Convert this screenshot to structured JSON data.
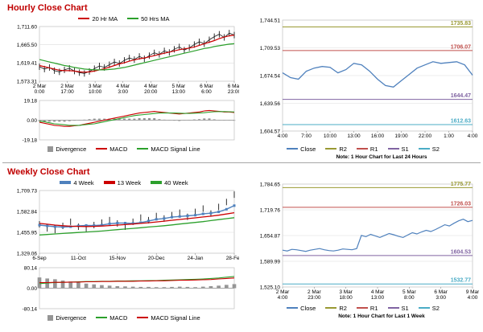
{
  "colors": {
    "section_title": "#C00000",
    "close_line": "#4F81BD",
    "grid": "#DCDCDC"
  },
  "sections": {
    "hourly": {
      "title": "Hourly Close Chart"
    },
    "weekly": {
      "title": "Weekly Close Chart"
    }
  },
  "chart_data": [
    {
      "id": "hourly-price",
      "type": "line",
      "title": "Hourly Close Chart",
      "ylim": [
        1573.31,
        1711.6
      ],
      "yticks": [
        {
          "v": 1711.6,
          "t": "1,711.60"
        },
        {
          "v": 1665.5,
          "t": "1,665.50"
        },
        {
          "v": 1619.41,
          "t": "1,619.41"
        },
        {
          "v": 1573.31,
          "t": "1,573.31"
        }
      ],
      "xticklabels": [
        [
          "2 Mar",
          "0:00"
        ],
        [
          "2 Mar",
          "17:00"
        ],
        [
          "3 Mar",
          "10:00"
        ],
        [
          "4 Mar",
          "3:00"
        ],
        [
          "4 Mar",
          "20:00"
        ],
        [
          "5 Mar",
          "13:00"
        ],
        [
          "6 Mar",
          "6:00"
        ],
        [
          "6 Mar",
          "23:00"
        ]
      ],
      "legend": [
        {
          "name": "20 Hr MA",
          "color": "#CC0000",
          "swatch": "line"
        },
        {
          "name": "50 Hrs MA",
          "color": "#2CA02C",
          "swatch": "line"
        }
      ],
      "series": [
        {
          "name": "Close",
          "color": "#1A1A1A",
          "width": 0.8,
          "render": "hl",
          "values": [
            1610,
            1604,
            1608,
            1600,
            1597,
            1602,
            1606,
            1599,
            1595,
            1593,
            1598,
            1605,
            1612,
            1608,
            1615,
            1622,
            1618,
            1626,
            1632,
            1628,
            1636,
            1630,
            1638,
            1645,
            1641,
            1650,
            1646,
            1654,
            1660,
            1652,
            1658,
            1666,
            1673,
            1668,
            1678,
            1686,
            1692,
            1684,
            1695,
            1690
          ]
        },
        {
          "name": "20 Hr MA",
          "color": "#CC0000",
          "width": 1.2,
          "values": [
            1613,
            1610,
            1607,
            1604,
            1601,
            1600,
            1600,
            1599,
            1597,
            1596,
            1597,
            1599,
            1602,
            1605,
            1609,
            1613,
            1617,
            1620,
            1624,
            1627,
            1630,
            1632,
            1635,
            1638,
            1641,
            1644,
            1647,
            1650,
            1653,
            1655,
            1657,
            1660,
            1664,
            1668,
            1672,
            1676,
            1681,
            1685,
            1688,
            1690
          ]
        },
        {
          "name": "50 Hrs MA",
          "color": "#2CA02C",
          "width": 1.2,
          "values": [
            1628,
            1625,
            1622,
            1619,
            1616,
            1613,
            1611,
            1608,
            1606,
            1604,
            1603,
            1602,
            1602,
            1602,
            1603,
            1604,
            1606,
            1608,
            1611,
            1614,
            1617,
            1620,
            1623,
            1626,
            1629,
            1632,
            1635,
            1638,
            1641,
            1644,
            1647,
            1650,
            1653,
            1656,
            1658,
            1661,
            1663,
            1665,
            1667,
            1668
          ]
        }
      ]
    },
    {
      "id": "hourly-macd",
      "type": "line+bar",
      "ylim": [
        -19.18,
        19.18
      ],
      "zero_line": true,
      "yticks": [
        {
          "v": 19.18,
          "t": "19.18"
        },
        {
          "v": 0,
          "t": "0.00"
        },
        {
          "v": -19.18,
          "t": "-19.18"
        }
      ],
      "legend": [
        {
          "name": "Divergence",
          "color": "#969696",
          "swatch": "bar"
        },
        {
          "name": "MACD",
          "color": "#CC0000",
          "swatch": "line"
        },
        {
          "name": "MACD Signal Line",
          "color": "#2CA02C",
          "swatch": "line"
        }
      ],
      "bars": {
        "name": "Divergence",
        "color": "#969696",
        "values": [
          -1,
          -1.5,
          -1.5,
          -1.5,
          -1.5,
          -1.5,
          -1,
          -0.5,
          0,
          0.5,
          1,
          1.5,
          1.5,
          1.5,
          1.5,
          1.5,
          1.5,
          1.5,
          1.5,
          1.5,
          2,
          2,
          2,
          2,
          1,
          0.5,
          0,
          -0.5,
          -0.8,
          -0.1,
          0.4,
          0.7,
          1,
          1.7,
          1.7,
          0.8,
          0.1,
          -0.4,
          -0.2,
          -0.5
        ]
      },
      "series": [
        {
          "name": "MACD",
          "color": "#CC0000",
          "width": 1.1,
          "values": [
            -2,
            -3,
            -4,
            -5,
            -5.5,
            -6,
            -6,
            -5.5,
            -5,
            -4,
            -3,
            -2,
            -1,
            0,
            1,
            2,
            3,
            4,
            5,
            6,
            7,
            7.5,
            8,
            8.5,
            8,
            7.5,
            7,
            6.5,
            6,
            6.5,
            7,
            7.5,
            8,
            9,
            9.5,
            9,
            8.5,
            8,
            8,
            7.5
          ]
        },
        {
          "name": "MACD Signal Line",
          "color": "#2CA02C",
          "width": 1.1,
          "values": [
            -1,
            -1.5,
            -2.5,
            -3.5,
            -4,
            -4.5,
            -5,
            -5,
            -5,
            -4.5,
            -4,
            -3.5,
            -2.5,
            -1.5,
            -0.5,
            0.5,
            1.5,
            2.5,
            3.5,
            4.5,
            5,
            5.5,
            6,
            6.5,
            7,
            7,
            7,
            7,
            6.8,
            6.6,
            6.6,
            6.8,
            7,
            7.3,
            7.8,
            8.2,
            8.4,
            8.4,
            8.2,
            8
          ]
        }
      ]
    },
    {
      "id": "hourly-sr",
      "type": "line",
      "note": "Note: 1 Hour Chart for Last 24 Hours",
      "ylim": [
        1604.57,
        1744.51
      ],
      "yticks": [
        {
          "v": 1744.51,
          "t": "1,744.51"
        },
        {
          "v": 1709.53,
          "t": "1,709.53"
        },
        {
          "v": 1674.54,
          "t": "1,674.54"
        },
        {
          "v": 1639.56,
          "t": "1,639.56"
        },
        {
          "v": 1604.57,
          "t": "1,604.57"
        }
      ],
      "xticklabels": [
        "4:00",
        "7:00",
        "10:00",
        "13:00",
        "16:00",
        "19:00",
        "22:00",
        "1:00",
        "4:00"
      ],
      "levels": [
        {
          "name": "R2",
          "value": 1735.83,
          "label": "1735.83",
          "color": "#999933"
        },
        {
          "name": "R1",
          "value": 1706.07,
          "label": "1706.07",
          "color": "#C0504D"
        },
        {
          "name": "S1",
          "value": 1644.47,
          "label": "1644.47",
          "color": "#8064A2"
        },
        {
          "name": "S2",
          "value": 1612.63,
          "label": "1612.63",
          "color": "#4BACC6"
        }
      ],
      "legend": [
        {
          "name": "Close",
          "color": "#4F81BD",
          "swatch": "line"
        },
        {
          "name": "R2",
          "color": "#999933",
          "swatch": "line"
        },
        {
          "name": "R1",
          "color": "#C0504D",
          "swatch": "line"
        },
        {
          "name": "S1",
          "color": "#8064A2",
          "swatch": "line"
        },
        {
          "name": "S2",
          "color": "#4BACC6",
          "swatch": "line"
        }
      ],
      "series": [
        {
          "name": "Close",
          "color": "#4F81BD",
          "width": 1.3,
          "values": [
            1678,
            1672,
            1670,
            1680,
            1684,
            1686,
            1685,
            1678,
            1682,
            1690,
            1688,
            1680,
            1670,
            1662,
            1660,
            1668,
            1676,
            1684,
            1688,
            1692,
            1690,
            1691,
            1692,
            1688,
            1675
          ]
        }
      ]
    },
    {
      "id": "weekly-price",
      "type": "line",
      "title": "Weekly Close Chart",
      "ylim": [
        1329.06,
        1709.73
      ],
      "yticks": [
        {
          "v": 1709.73,
          "t": "1,709.73"
        },
        {
          "v": 1582.84,
          "t": "1,582.84"
        },
        {
          "v": 1455.95,
          "t": "1,455.95"
        },
        {
          "v": 1329.06,
          "t": "1,329.06"
        }
      ],
      "xticklabels": [
        "6-Sep",
        "11-Oct",
        "15-Nov",
        "20-Dec",
        "24-Jan",
        "28-Feb"
      ],
      "legend": [
        {
          "name": "4 Week",
          "color": "#4F81BD",
          "swatch": "thick"
        },
        {
          "name": "13 Week",
          "color": "#CC0000",
          "swatch": "thick"
        },
        {
          "name": "40 Week",
          "color": "#2CA02C",
          "swatch": "thick"
        }
      ],
      "series": [
        {
          "name": "Close",
          "color": "#1A1A1A",
          "render": "hl",
          "noline": true,
          "values": [
            1505,
            1480,
            1470,
            1495,
            1520,
            1490,
            1475,
            1500,
            1515,
            1530,
            1510,
            1490,
            1520,
            1545,
            1530,
            1555,
            1540,
            1560,
            1575,
            1550,
            1580,
            1600,
            1570,
            1610,
            1640,
            1685
          ]
        },
        {
          "name": "4 Week",
          "color": "#4F81BD",
          "width": 1.4,
          "marker": "square",
          "values": [
            1500,
            1495,
            1490,
            1488,
            1490,
            1495,
            1498,
            1497,
            1500,
            1508,
            1512,
            1512,
            1510,
            1515,
            1525,
            1535,
            1540,
            1548,
            1552,
            1556,
            1560,
            1568,
            1572,
            1580,
            1596,
            1618
          ]
        },
        {
          "name": "13 Week",
          "color": "#CC0000",
          "width": 1.3,
          "values": [
            1510,
            1505,
            1500,
            1496,
            1493,
            1492,
            1491,
            1492,
            1494,
            1497,
            1500,
            1503,
            1506,
            1510,
            1514,
            1519,
            1524,
            1529,
            1534,
            1539,
            1544,
            1549,
            1554,
            1560,
            1567,
            1575
          ]
        },
        {
          "name": "40 Week",
          "color": "#2CA02C",
          "width": 1.3,
          "values": [
            1440,
            1443,
            1446,
            1449,
            1452,
            1455,
            1458,
            1461,
            1464,
            1468,
            1472,
            1476,
            1480,
            1484,
            1488,
            1492,
            1496,
            1501,
            1506,
            1511,
            1516,
            1521,
            1527,
            1533,
            1539,
            1545
          ]
        }
      ]
    },
    {
      "id": "weekly-macd",
      "type": "line+bar",
      "ylim": [
        -80.14,
        80.14
      ],
      "zero_line": true,
      "yticks": [
        {
          "v": 80.14,
          "t": "80.14"
        },
        {
          "v": 0,
          "t": "0.00"
        },
        {
          "v": -80.14,
          "t": "-80.14"
        }
      ],
      "legend": [
        {
          "name": "Divergence",
          "color": "#969696",
          "swatch": "bar"
        },
        {
          "name": "MACD",
          "color": "#2CA02C",
          "swatch": "line"
        },
        {
          "name": "MACD Signal Line",
          "color": "#CC0000",
          "swatch": "line"
        }
      ],
      "bars": {
        "name": "Divergence",
        "color": "#969696",
        "values": [
          42,
          38,
          35,
          30,
          26,
          22,
          18,
          15,
          12,
          10,
          8,
          7,
          6,
          5,
          5,
          4,
          4,
          5,
          6,
          5,
          4,
          6,
          8,
          10,
          13,
          16
        ]
      },
      "series": [
        {
          "name": "MACD",
          "color": "#2CA02C",
          "width": 1.1,
          "values": [
            18,
            20,
            22,
            23,
            24,
            25,
            26,
            26,
            27,
            27,
            28,
            28,
            29,
            29,
            30,
            30,
            31,
            32,
            33,
            34,
            35,
            36,
            38,
            40,
            43,
            46
          ]
        },
        {
          "name": "MACD Signal Line",
          "color": "#CC0000",
          "width": 1.1,
          "values": [
            22,
            22,
            23,
            23,
            24,
            24,
            25,
            25,
            26,
            26,
            27,
            27,
            27,
            28,
            28,
            29,
            29,
            30,
            31,
            31,
            32,
            33,
            34,
            36,
            38,
            40
          ]
        }
      ]
    },
    {
      "id": "weekly-sr",
      "type": "line",
      "note": "Note: 1 Hour Chart for Last 1 Week",
      "ylim": [
        1525.1,
        1784.65
      ],
      "yticks": [
        {
          "v": 1784.65,
          "t": "1,784.65"
        },
        {
          "v": 1719.76,
          "t": "1,719.76"
        },
        {
          "v": 1654.87,
          "t": "1,654.87"
        },
        {
          "v": 1589.99,
          "t": "1,589.99"
        },
        {
          "v": 1525.1,
          "t": "1,525.10"
        }
      ],
      "xticklabels": [
        [
          "2 Mar",
          "4:00"
        ],
        [
          "2 Mar",
          "23:00"
        ],
        [
          "3 Mar",
          "18:00"
        ],
        [
          "4 Mar",
          "13:00"
        ],
        [
          "5 Mar",
          "8:00"
        ],
        [
          "6 Mar",
          "3:00"
        ],
        [
          "9 Mar",
          "4:00"
        ]
      ],
      "levels": [
        {
          "name": "R2",
          "value": 1775.77,
          "label": "1775.77",
          "color": "#999933"
        },
        {
          "name": "R1",
          "value": 1726.03,
          "label": "1726.03",
          "color": "#C0504D"
        },
        {
          "name": "S1",
          "value": 1604.53,
          "label": "1604.53",
          "color": "#8064A2"
        },
        {
          "name": "S2",
          "value": 1532.77,
          "label": "1532.77",
          "color": "#4BACC6"
        }
      ],
      "legend": [
        {
          "name": "Close",
          "color": "#4F81BD",
          "swatch": "line"
        },
        {
          "name": "R2",
          "color": "#999933",
          "swatch": "line"
        },
        {
          "name": "R1",
          "color": "#C0504D",
          "swatch": "line"
        },
        {
          "name": "S1",
          "color": "#8064A2",
          "swatch": "line"
        },
        {
          "name": "S2",
          "color": "#4BACC6",
          "swatch": "line"
        }
      ],
      "series": [
        {
          "name": "Close",
          "color": "#4F81BD",
          "width": 1.2,
          "values": [
            1618,
            1616,
            1620,
            1619,
            1617,
            1615,
            1618,
            1620,
            1622,
            1619,
            1617,
            1616,
            1618,
            1621,
            1620,
            1619,
            1622,
            1655,
            1652,
            1658,
            1654,
            1650,
            1655,
            1660,
            1657,
            1653,
            1650,
            1656,
            1662,
            1659,
            1664,
            1668,
            1665,
            1670,
            1676,
            1682,
            1679,
            1686,
            1692,
            1696,
            1690,
            1693
          ]
        }
      ]
    }
  ]
}
